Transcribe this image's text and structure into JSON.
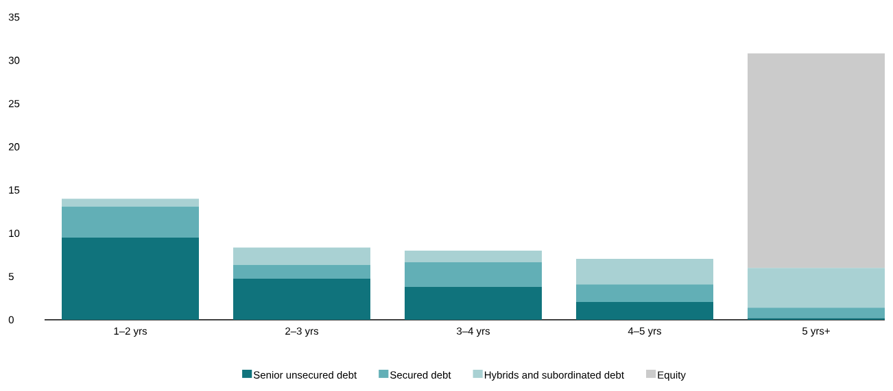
{
  "chart_data": {
    "type": "bar",
    "stacked": true,
    "categories": [
      "1–2 yrs",
      "2–3 yrs",
      "3–4 yrs",
      "4–5 yrs",
      "5 yrs+"
    ],
    "series": [
      {
        "name": "Senior unsecured debt",
        "color": "#10737c",
        "values": [
          9.5,
          4.75,
          3.8,
          2.05,
          0.2
        ]
      },
      {
        "name": "Secured debt",
        "color": "#62afb6",
        "values": [
          3.6,
          1.6,
          2.85,
          2.05,
          1.2
        ]
      },
      {
        "name": "Hybrids and subordinated debt",
        "color": "#a9d1d3",
        "values": [
          0.9,
          2.0,
          1.35,
          2.95,
          4.6
        ]
      },
      {
        "name": "Equity",
        "color": "#cbcbcb",
        "values": [
          0,
          0,
          0,
          0,
          24.8
        ]
      }
    ],
    "ylim": [
      0,
      35
    ],
    "yticks": [
      0,
      5,
      10,
      15,
      20,
      25,
      30,
      35
    ],
    "legend": "bottom"
  }
}
